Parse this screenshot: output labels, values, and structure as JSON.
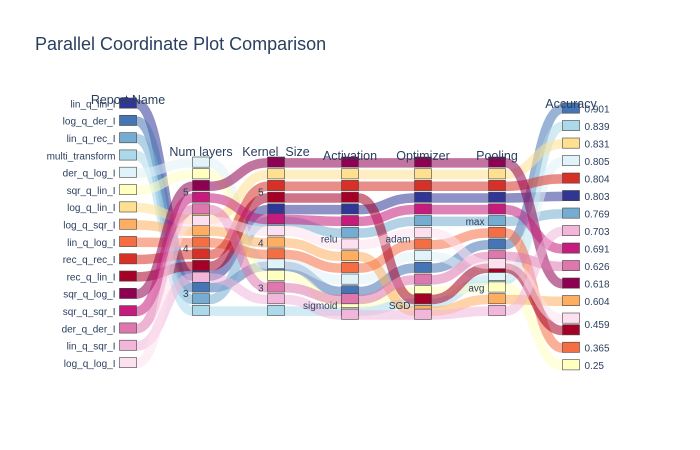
{
  "chart_data": {
    "type": "parallel_categories",
    "title": "Parallel Coordinate Plot Comparison",
    "colors": [
      "#313695",
      "#4575b4",
      "#74add1",
      "#abd9e9",
      "#e0f3f8",
      "#ffffbf",
      "#fee090",
      "#fdae61",
      "#f46d43",
      "#d73027",
      "#a50026",
      "#8e0152",
      "#c51b7d",
      "#de77ae",
      "#f1b6da",
      "#fde0ef"
    ],
    "dimensions": [
      {
        "label": "Report Name",
        "values": [
          "lin_q_lin_I",
          "log_q_der_I",
          "lin_q_rec_I",
          "multi_transform",
          "der_q_log_I",
          "sqr_q_lin_I",
          "log_q_lin_I",
          "log_q_sqr_I",
          "lin_q_log_I",
          "rec_q_rec_I",
          "rec_q_lin_I",
          "sqr_q_log_I",
          "sqr_q_sqr_I",
          "der_q_der_I",
          "lin_q_sqr_I",
          "log_q_log_I"
        ]
      },
      {
        "label": "Num layers",
        "values": [
          "5",
          "4",
          "3"
        ]
      },
      {
        "label": "Kernel_Size",
        "values": [
          "5",
          "4",
          "3"
        ]
      },
      {
        "label": "Activation",
        "values": [
          "relu",
          "sigmoid"
        ]
      },
      {
        "label": "Optimizer",
        "values": [
          "adam",
          "SGD"
        ]
      },
      {
        "label": "Pooling",
        "values": [
          "max",
          "avg"
        ]
      },
      {
        "label": "Accuracy",
        "values": [
          "0.901",
          "0.839",
          "0.831",
          "0.805",
          "0.804",
          "0.803",
          "0.769",
          "0.703",
          "0.691",
          "0.626",
          "0.618",
          "0.604",
          "0.459",
          "0.365",
          "0.25"
        ]
      }
    ],
    "records": [
      {
        "name": "lin_q_lin_I",
        "layers": "3",
        "kernel": "5",
        "activation": "relu",
        "optimizer": "adam",
        "pooling": "max",
        "accuracy": "0.803"
      },
      {
        "name": "log_q_der_I",
        "layers": "3",
        "kernel": "4",
        "activation": "relu",
        "optimizer": "adam",
        "pooling": "max",
        "accuracy": "0.901"
      },
      {
        "name": "lin_q_rec_I",
        "layers": "3",
        "kernel": "5",
        "activation": "relu",
        "optimizer": "adam",
        "pooling": "max",
        "accuracy": "0.769"
      },
      {
        "name": "multi_transform",
        "layers": "3",
        "kernel": "3",
        "activation": "sigmoid",
        "optimizer": "adam",
        "pooling": "max",
        "accuracy": "0.839"
      },
      {
        "name": "der_q_log_I",
        "layers": "5",
        "kernel": "3",
        "activation": "relu",
        "optimizer": "adam",
        "pooling": "avg",
        "accuracy": "0.805"
      },
      {
        "name": "sqr_q_lin_I",
        "layers": "5",
        "kernel": "3",
        "activation": "relu",
        "optimizer": "adam",
        "pooling": "avg",
        "accuracy": "0.25"
      },
      {
        "name": "log_q_lin_I",
        "layers": "4",
        "kernel": "5",
        "activation": "relu",
        "optimizer": "adam",
        "pooling": "max",
        "accuracy": "0.831"
      },
      {
        "name": "log_q_sqr_I",
        "layers": "4",
        "kernel": "4",
        "activation": "relu",
        "optimizer": "SGD",
        "pooling": "avg",
        "accuracy": "0.604"
      },
      {
        "name": "lin_q_log_I",
        "layers": "4",
        "kernel": "4",
        "activation": "relu",
        "optimizer": "adam",
        "pooling": "max",
        "accuracy": "0.365"
      },
      {
        "name": "rec_q_rec_I",
        "layers": "4",
        "kernel": "5",
        "activation": "relu",
        "optimizer": "adam",
        "pooling": "max",
        "accuracy": "0.804"
      },
      {
        "name": "rec_q_lin_I",
        "layers": "4",
        "kernel": "5",
        "activation": "relu",
        "optimizer": "SGD",
        "pooling": "max",
        "accuracy": "0.459"
      },
      {
        "name": "sqr_q_log_I",
        "layers": "5",
        "kernel": "5",
        "activation": "relu",
        "optimizer": "adam",
        "pooling": "max",
        "accuracy": "0.618"
      },
      {
        "name": "sqr_q_sqr_I",
        "layers": "5",
        "kernel": "4",
        "activation": "relu",
        "optimizer": "adam",
        "pooling": "max",
        "accuracy": "0.691"
      },
      {
        "name": "der_q_der_I",
        "layers": "5",
        "kernel": "3",
        "activation": "sigmoid",
        "optimizer": "adam",
        "pooling": "max",
        "accuracy": "0.626"
      },
      {
        "name": "lin_q_sqr_I",
        "layers": "4",
        "kernel": "3",
        "activation": "relu",
        "optimizer": "adam",
        "pooling": "avg",
        "accuracy": "0.703"
      },
      {
        "name": "log_q_log_I",
        "layers": "5",
        "kernel": "4",
        "activation": "relu",
        "optimizer": "adam",
        "pooling": "avg",
        "accuracy": "0.459"
      }
    ]
  }
}
